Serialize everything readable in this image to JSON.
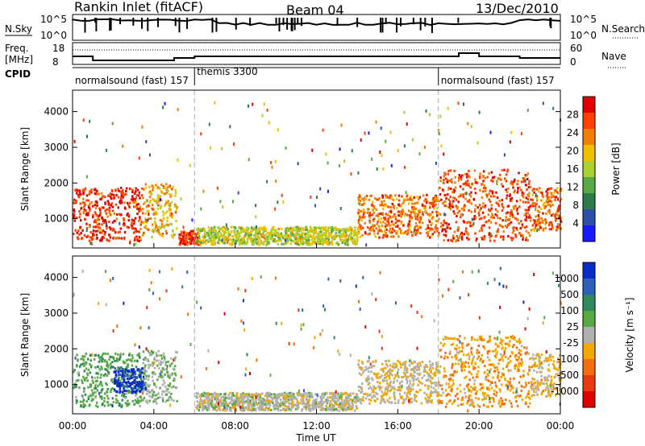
{
  "header": {
    "title": "Rankin Inlet (fitACF)",
    "beam": "Beam 04",
    "date": "13/Dec/2010"
  },
  "sky_panel": {
    "left_label": "N.Sky",
    "right_label": "N.Search",
    "left_ticks": [
      "10^5",
      "10^0"
    ],
    "right_ticks": [
      "10^5",
      "10^0"
    ]
  },
  "freq_panel": {
    "left_label_1": "Freq.",
    "left_label_2": "[MHz]",
    "right_label": "Nave",
    "left_ticks": [
      "18",
      "8"
    ],
    "right_ticks": [
      "60",
      "0"
    ]
  },
  "cpid_panel": {
    "label": "CPID",
    "segments": [
      {
        "label": "normalsound (fast) 157",
        "start_hour": 0
      },
      {
        "label": "themis 3300",
        "start_hour": 6
      },
      {
        "label": "normalsound (fast) 157",
        "start_hour": 18
      }
    ]
  },
  "time_axis": {
    "xlabel": "Time UT",
    "tick_labels": [
      "00:00",
      "04:00",
      "08:00",
      "12:00",
      "16:00",
      "20:00",
      "00:00"
    ],
    "range_hours": [
      0,
      24
    ]
  },
  "colors": {
    "velocity_palette": [
      "#0a2cc6",
      "#2f5fb8",
      "#2e8a5a",
      "#5aa845",
      "#b0b0b0",
      "#f2a800",
      "#f07010",
      "#e83a10",
      "#e00000"
    ],
    "power_palette": [
      "#1a1aff",
      "#2c4fa8",
      "#2d7a4a",
      "#5aa845",
      "#a8d030",
      "#f0c000",
      "#f08000",
      "#ff4000",
      "#e00000"
    ]
  },
  "chart_data": [
    {
      "type": "heatmap",
      "title": "",
      "xlabel": "",
      "ylabel": "Slant Range [km]",
      "yticks": [
        "1000",
        "2000",
        "3000",
        "4000"
      ],
      "ylim": [
        180,
        4600
      ],
      "colorbar": {
        "label": "Power [dB]",
        "ticks": [
          "4",
          "8",
          "12",
          "16",
          "20",
          "24",
          "28"
        ],
        "range": [
          0,
          30
        ]
      },
      "echo_regions": [
        {
          "t": [
            0.0,
            3.4
          ],
          "range_km": [
            400,
            1900
          ],
          "power_db": 28
        },
        {
          "t": [
            3.4,
            5.1
          ],
          "range_km": [
            500,
            2000
          ],
          "power_db": 20
        },
        {
          "t": [
            5.2,
            6.2
          ],
          "range_km": [
            300,
            700
          ],
          "power_db": 28
        },
        {
          "t": [
            6.0,
            14.0
          ],
          "range_km": [
            300,
            800
          ],
          "power_db": 16
        },
        {
          "t": [
            14.0,
            18.0
          ],
          "range_km": [
            500,
            1700
          ],
          "power_db": 24
        },
        {
          "t": [
            18.0,
            22.5
          ],
          "range_km": [
            400,
            2400
          ],
          "power_db": 26
        },
        {
          "t": [
            22.5,
            24.0
          ],
          "range_km": [
            700,
            1900
          ],
          "power_db": 24
        }
      ],
      "cpid_boundaries_hours": [
        6,
        18
      ]
    },
    {
      "type": "heatmap",
      "title": "",
      "xlabel": "Time UT",
      "ylabel": "Slant Range [km]",
      "yticks": [
        "1000",
        "2000",
        "3000",
        "4000"
      ],
      "ylim": [
        180,
        4600
      ],
      "colorbar": {
        "label": "Velocity [m s⁻¹]",
        "ticks": [
          "1000",
          "500",
          "100",
          "25",
          "-25",
          "-100",
          "-500",
          "-1000"
        ],
        "range": [
          1200,
          -1200
        ]
      },
      "echo_regions": [
        {
          "t": [
            0.0,
            3.4
          ],
          "range_km": [
            400,
            1900
          ],
          "velocity": 300
        },
        {
          "t": [
            2.0,
            3.5
          ],
          "range_km": [
            800,
            1500
          ],
          "velocity": 1000
        },
        {
          "t": [
            3.4,
            5.1
          ],
          "range_km": [
            500,
            2000
          ],
          "velocity": 100
        },
        {
          "t": [
            6.0,
            14.0
          ],
          "range_km": [
            300,
            800
          ],
          "velocity": 0
        },
        {
          "t": [
            14.0,
            18.0
          ],
          "range_km": [
            500,
            1700
          ],
          "velocity": -100
        },
        {
          "t": [
            18.0,
            22.5
          ],
          "range_km": [
            400,
            2400
          ],
          "velocity": -300
        },
        {
          "t": [
            22.5,
            24.0
          ],
          "range_km": [
            700,
            1900
          ],
          "velocity": -200
        }
      ],
      "cpid_boundaries_hours": [
        6,
        18
      ]
    }
  ]
}
